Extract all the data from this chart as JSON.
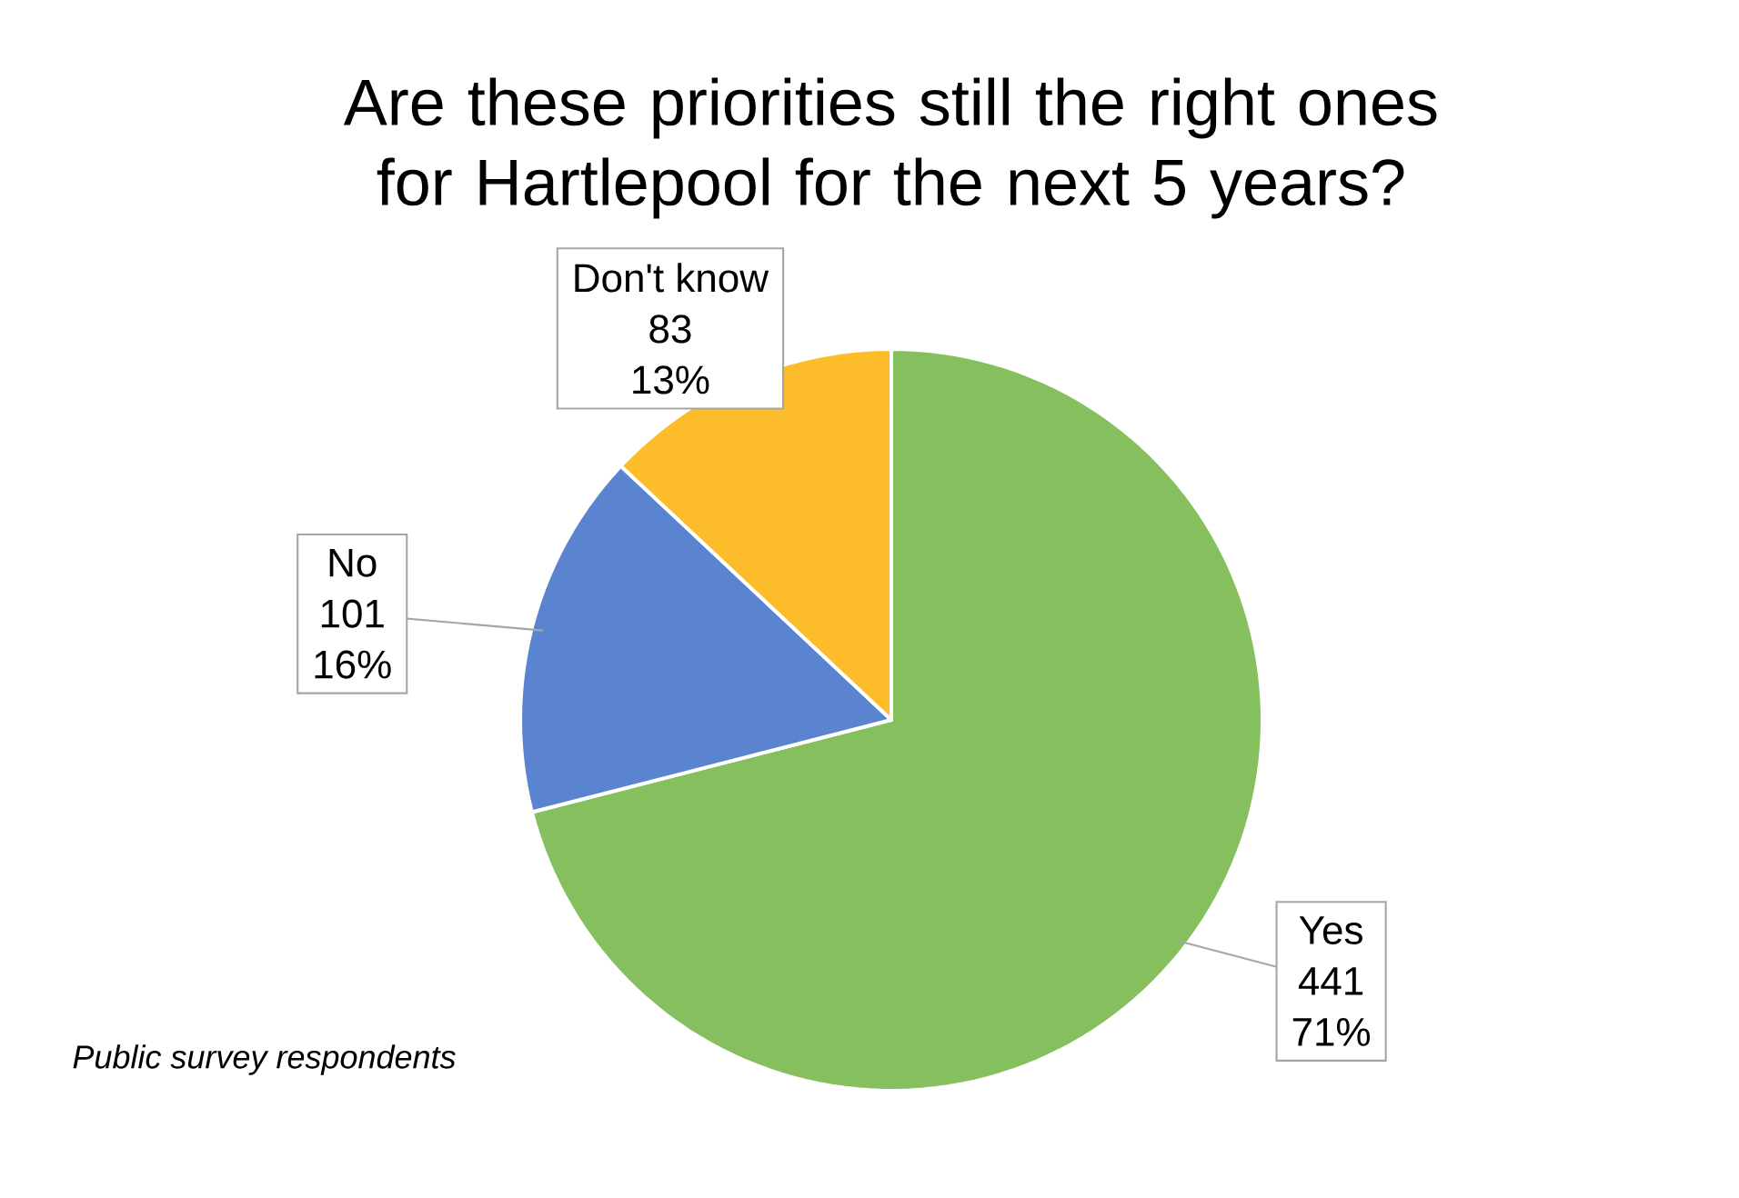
{
  "chart_data": {
    "type": "pie",
    "title": "Are these priorities still the right ones for Hartlepool for the next 5 years?",
    "categories": [
      "Yes",
      "No",
      "Don't know"
    ],
    "values": [
      71,
      16,
      13
    ],
    "value_labels": [
      "71%",
      "16%",
      "13%"
    ],
    "colors": [
      "#86bf5e",
      "#5b84d0",
      "#fdbd2a"
    ],
    "annotations": [
      {
        "text": "441",
        "x": "Yes"
      },
      {
        "text": "101",
        "x": "No"
      },
      {
        "text": "83",
        "x": "Don't know"
      },
      "Public survey respondents"
    ]
  }
}
